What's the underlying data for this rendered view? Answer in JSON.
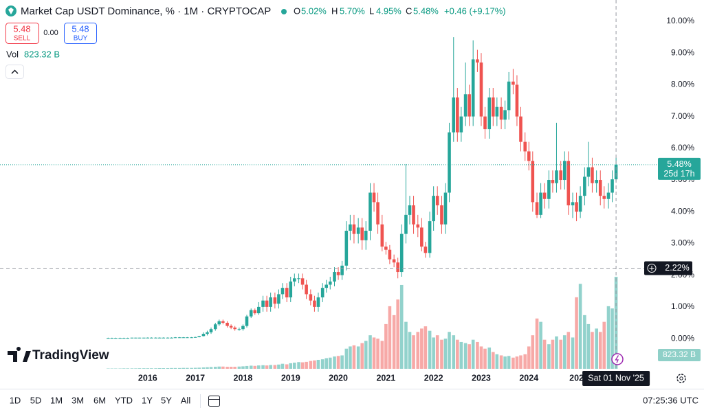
{
  "chart_data": {
    "type": "candlestick",
    "title": "Market Cap USDT Dominance, % · 1M · CRYPTOCAP",
    "x": [
      2015.17,
      2015.25,
      2015.33,
      2015.42,
      2015.5,
      2015.58,
      2015.67,
      2015.75,
      2015.83,
      2015.92,
      2016,
      2016.08,
      2016.17,
      2016.25,
      2016.33,
      2016.42,
      2016.5,
      2016.58,
      2016.67,
      2016.75,
      2016.83,
      2016.92,
      2017,
      2017.08,
      2017.17,
      2017.25,
      2017.33,
      2017.42,
      2017.5,
      2017.58,
      2017.67,
      2017.75,
      2017.83,
      2017.92,
      2018,
      2018.08,
      2018.17,
      2018.25,
      2018.33,
      2018.42,
      2018.5,
      2018.58,
      2018.67,
      2018.75,
      2018.83,
      2018.92,
      2019,
      2019.08,
      2019.17,
      2019.25,
      2019.33,
      2019.42,
      2019.5,
      2019.58,
      2019.67,
      2019.75,
      2019.83,
      2019.92,
      2020,
      2020.08,
      2020.17,
      2020.25,
      2020.33,
      2020.42,
      2020.5,
      2020.58,
      2020.67,
      2020.75,
      2020.83,
      2020.92,
      2021,
      2021.08,
      2021.17,
      2021.25,
      2021.33,
      2021.42,
      2021.5,
      2021.58,
      2021.67,
      2021.75,
      2021.83,
      2021.92,
      2022,
      2022.08,
      2022.17,
      2022.25,
      2022.33,
      2022.42,
      2022.5,
      2022.58,
      2022.67,
      2022.75,
      2022.83,
      2022.92,
      2023,
      2023.08,
      2023.17,
      2023.25,
      2023.33,
      2023.42,
      2023.5,
      2023.58,
      2023.67,
      2023.75,
      2023.83,
      2023.92,
      2024,
      2024.08,
      2024.17,
      2024.25,
      2024.33,
      2024.42,
      2024.5,
      2024.58,
      2024.67,
      2024.75,
      2024.83,
      2024.92,
      2025,
      2025.08,
      2025.17,
      2025.25,
      2025.33,
      2025.42,
      2025.5,
      2025.58,
      2025.67,
      2025.75,
      2025.83
    ],
    "open": [
      0.02,
      0.02,
      0.02,
      0.02,
      0.02,
      0.02,
      0.02,
      0.03,
      0.03,
      0.03,
      0.03,
      0.03,
      0.03,
      0.03,
      0.03,
      0.03,
      0.03,
      0.03,
      0.04,
      0.04,
      0.04,
      0.04,
      0.04,
      0.05,
      0.08,
      0.15,
      0.2,
      0.3,
      0.45,
      0.55,
      0.5,
      0.4,
      0.35,
      0.3,
      0.3,
      0.4,
      0.7,
      0.9,
      0.8,
      1.0,
      1.2,
      1.0,
      1.3,
      1.1,
      1.4,
      1.6,
      1.3,
      1.8,
      1.9,
      1.9,
      1.7,
      1.4,
      1.2,
      1.0,
      1.3,
      1.6,
      1.7,
      1.8,
      2.1,
      2.0,
      2.3,
      3.4,
      3.6,
      3.3,
      3.5,
      3.1,
      3.4,
      4.6,
      4.3,
      3.6,
      2.9,
      2.8,
      2.5,
      2.4,
      2.1,
      3.3,
      3.9,
      4.2,
      3.6,
      3.5,
      2.9,
      2.7,
      3.7,
      4.5,
      4.2,
      3.6,
      4.6,
      6.5,
      7.6,
      6.5,
      7.0,
      7.7,
      7.0,
      8.8,
      8.7,
      7.0,
      6.6,
      7.6,
      7.0,
      7.3,
      6.9,
      7.2,
      8.1,
      8.0,
      7.0,
      6.2,
      5.9,
      5.6,
      4.3,
      3.9,
      4.6,
      4.4,
      5.0,
      4.9,
      5.3,
      5.0,
      5.6,
      4.2,
      4.3,
      4.0,
      4.5,
      5.1,
      5.4,
      4.9,
      5.0,
      4.5,
      4.4,
      4.6,
      5.02
    ],
    "high": [
      0.03,
      0.03,
      0.03,
      0.03,
      0.03,
      0.03,
      0.03,
      0.03,
      0.03,
      0.03,
      0.04,
      0.04,
      0.04,
      0.04,
      0.04,
      0.04,
      0.04,
      0.05,
      0.05,
      0.05,
      0.05,
      0.05,
      0.06,
      0.09,
      0.2,
      0.25,
      0.35,
      0.5,
      0.6,
      0.6,
      0.55,
      0.45,
      0.4,
      0.35,
      0.45,
      0.75,
      0.95,
      0.95,
      1.15,
      1.35,
      1.35,
      1.45,
      1.45,
      1.55,
      1.75,
      1.75,
      1.95,
      2.05,
      2.05,
      2.05,
      1.85,
      1.55,
      1.35,
      1.45,
      1.75,
      1.85,
      1.95,
      2.25,
      2.25,
      2.45,
      3.7,
      3.9,
      3.9,
      3.8,
      3.8,
      3.7,
      4.9,
      4.9,
      4.6,
      3.9,
      3.05,
      2.95,
      2.65,
      2.55,
      3.6,
      5.5,
      4.5,
      4.5,
      3.9,
      3.8,
      3.05,
      4.0,
      4.8,
      4.8,
      4.5,
      4.9,
      6.8,
      9.5,
      7.9,
      7.3,
      8.7,
      8.0,
      9.4,
      9.1,
      9.0,
      7.3,
      7.9,
      7.9,
      7.6,
      7.6,
      7.5,
      8.4,
      8.5,
      8.3,
      7.3,
      6.5,
      6.2,
      5.9,
      4.6,
      4.9,
      4.9,
      5.3,
      5.3,
      6.8,
      5.6,
      5.9,
      5.9,
      4.6,
      4.6,
      4.8,
      5.4,
      6.2,
      5.7,
      5.3,
      5.3,
      4.8,
      4.9,
      5.3,
      5.7
    ],
    "low": [
      0.01,
      0.01,
      0.01,
      0.01,
      0.01,
      0.01,
      0.01,
      0.01,
      0.01,
      0.01,
      0.02,
      0.02,
      0.02,
      0.02,
      0.02,
      0.02,
      0.02,
      0.02,
      0.03,
      0.03,
      0.03,
      0.03,
      0.03,
      0.04,
      0.07,
      0.1,
      0.15,
      0.25,
      0.4,
      0.45,
      0.35,
      0.3,
      0.25,
      0.25,
      0.25,
      0.35,
      0.65,
      0.75,
      0.75,
      0.85,
      0.85,
      0.85,
      0.95,
      0.95,
      1.25,
      1.15,
      1.15,
      1.65,
      1.75,
      1.55,
      1.25,
      1.05,
      0.85,
      0.85,
      1.15,
      1.45,
      1.55,
      1.65,
      1.85,
      1.85,
      2.15,
      3.1,
      3.0,
      3.0,
      2.8,
      2.8,
      3.1,
      4.0,
      3.3,
      2.75,
      2.65,
      2.35,
      2.25,
      1.9,
      1.95,
      3.0,
      3.6,
      3.3,
      3.2,
      2.75,
      2.55,
      2.55,
      3.4,
      3.9,
      3.3,
      3.3,
      4.3,
      6.2,
      6.2,
      6.2,
      6.7,
      6.7,
      6.7,
      8.4,
      6.7,
      6.3,
      6.3,
      6.7,
      6.7,
      6.6,
      6.6,
      6.9,
      7.7,
      6.7,
      5.9,
      5.6,
      5.3,
      4.0,
      3.8,
      3.8,
      4.1,
      4.1,
      4.6,
      4.6,
      4.7,
      4.7,
      3.9,
      3.8,
      3.7,
      3.8,
      4.2,
      4.8,
      4.6,
      4.6,
      4.2,
      4.1,
      4.1,
      4.3,
      4.95
    ],
    "close": [
      0.02,
      0.02,
      0.02,
      0.02,
      0.02,
      0.02,
      0.03,
      0.03,
      0.03,
      0.03,
      0.03,
      0.03,
      0.03,
      0.03,
      0.03,
      0.03,
      0.03,
      0.04,
      0.04,
      0.04,
      0.04,
      0.04,
      0.05,
      0.08,
      0.15,
      0.2,
      0.3,
      0.45,
      0.55,
      0.5,
      0.4,
      0.35,
      0.3,
      0.3,
      0.4,
      0.7,
      0.9,
      0.8,
      1.0,
      1.2,
      1.0,
      1.3,
      1.1,
      1.4,
      1.6,
      1.3,
      1.8,
      1.9,
      1.9,
      1.7,
      1.4,
      1.2,
      1.0,
      1.3,
      1.6,
      1.7,
      1.8,
      2.1,
      2.0,
      2.3,
      3.4,
      3.6,
      3.3,
      3.5,
      3.1,
      3.4,
      4.6,
      4.3,
      3.6,
      2.9,
      2.8,
      2.5,
      2.4,
      2.1,
      3.3,
      3.9,
      4.2,
      3.6,
      3.5,
      2.9,
      2.7,
      3.7,
      4.5,
      4.2,
      3.6,
      4.6,
      6.5,
      7.6,
      6.5,
      7.0,
      7.7,
      7.0,
      8.8,
      8.7,
      7.0,
      6.6,
      7.6,
      7.0,
      7.3,
      6.9,
      7.2,
      8.1,
      8.0,
      7.0,
      6.2,
      5.9,
      5.6,
      4.3,
      3.9,
      4.6,
      4.4,
      5.0,
      4.9,
      5.3,
      5.0,
      5.6,
      4.2,
      4.3,
      4.0,
      4.5,
      5.1,
      5.4,
      4.9,
      5.0,
      4.5,
      4.4,
      4.6,
      5.02,
      5.48
    ],
    "volume": [
      3,
      3,
      3,
      3,
      4,
      4,
      4,
      4,
      5,
      5,
      5,
      5,
      5,
      6,
      6,
      6,
      7,
      7,
      7,
      8,
      8,
      8,
      9,
      10,
      12,
      14,
      16,
      18,
      20,
      20,
      18,
      18,
      18,
      20,
      22,
      25,
      28,
      26,
      30,
      32,
      30,
      34,
      34,
      38,
      45,
      40,
      50,
      55,
      60,
      58,
      62,
      70,
      75,
      80,
      85,
      95,
      100,
      110,
      115,
      120,
      180,
      200,
      210,
      200,
      230,
      250,
      300,
      280,
      270,
      250,
      400,
      560,
      480,
      620,
      750,
      420,
      330,
      300,
      330,
      360,
      380,
      340,
      280,
      300,
      260,
      270,
      330,
      300,
      260,
      240,
      230,
      220,
      260,
      240,
      200,
      180,
      190,
      150,
      130,
      120,
      110,
      115,
      100,
      110,
      120,
      130,
      200,
      300,
      450,
      420,
      260,
      220,
      260,
      290,
      260,
      300,
      330,
      280,
      640,
      760,
      480,
      400,
      330,
      360,
      330,
      420,
      560,
      540,
      823.32
    ],
    "volume_label": "823.32 B",
    "up_color": "#26a69a",
    "down_color": "#ef5350",
    "xlim": [
      2012.9,
      2026.68
    ],
    "ylim": [
      -0.95,
      10.67
    ],
    "xticks": [
      2016,
      2017,
      2018,
      2019,
      2020,
      2021,
      2022,
      2023,
      2024,
      {
        "value": 2025,
        "label": "202"
      }
    ],
    "yticks": [
      {
        "value": 10,
        "label": "10.00%"
      },
      {
        "value": 9,
        "label": "9.00%"
      },
      {
        "value": 8,
        "label": "8.00%"
      },
      {
        "value": 7,
        "label": "7.00%"
      },
      {
        "value": 6,
        "label": "6.00%"
      },
      {
        "value": 5,
        "label": "5.00%"
      },
      {
        "value": 4,
        "label": "4.00%"
      },
      {
        "value": 3,
        "label": "3.00%"
      },
      {
        "value": 2,
        "label": "2.00%"
      },
      {
        "value": 1,
        "label": "1.00%"
      },
      {
        "value": 0,
        "label": "0.00%"
      }
    ],
    "grid": false,
    "last_price": {
      "value": 5.48,
      "label": "5.48%"
    },
    "countdown": "25d 17h",
    "crosshair": {
      "value": 2.22,
      "label": "2.22%",
      "x": 2025.83,
      "x_label": "Sat 01 Nov '25"
    }
  },
  "legend": {
    "open_label": "O",
    "open": "5.02%",
    "high_label": "H",
    "high": "5.70%",
    "low_label": "L",
    "low": "4.95%",
    "close_label": "C",
    "close": "5.48%",
    "change": "+0.46 (+9.17%)"
  },
  "trade": {
    "sell_price": "5.48",
    "sell": "SELL",
    "spread": "0.00",
    "buy_price": "5.48",
    "buy": "BUY"
  },
  "volume_title": "Vol",
  "branding": "TradingView",
  "toolbar": {
    "ranges": [
      "1D",
      "5D",
      "1M",
      "3M",
      "6M",
      "YTD",
      "1Y",
      "5Y",
      "All"
    ],
    "time": "07:25:36 UTC"
  }
}
